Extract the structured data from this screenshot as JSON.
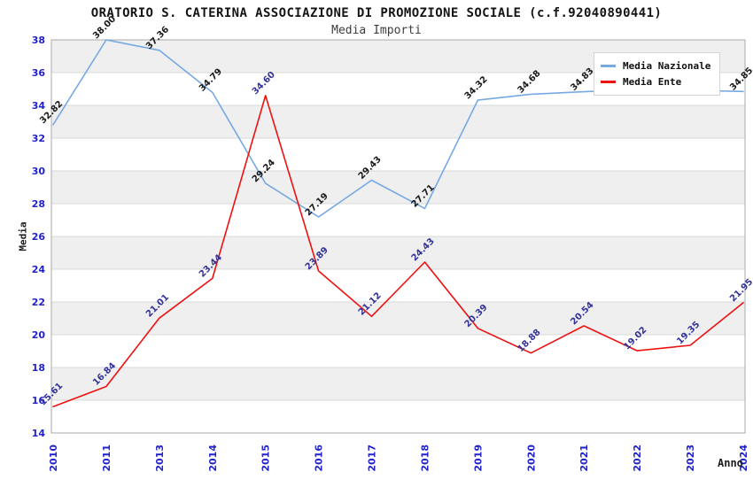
{
  "header": {
    "title": "ORATORIO S. CATERINA ASSOCIAZIONE DI PROMOZIONE SOCIALE (c.f.92040890441)",
    "subtitle": "Media Importi"
  },
  "chart_data": {
    "type": "line",
    "title": "ORATORIO S. CATERINA ASSOCIAZIONE DI PROMOZIONE SOCIALE (c.f.92040890441)",
    "subtitle": "Media Importi",
    "xlabel": "Anno",
    "ylabel": "Media",
    "ylim": [
      14,
      38
    ],
    "ytick_step": 2,
    "yticks": [
      14,
      16,
      18,
      20,
      22,
      24,
      26,
      28,
      30,
      32,
      34,
      36,
      38
    ],
    "grid": "horizontal gridlines every 2 units with alternating shaded bands",
    "legend_position": "top-right",
    "categories": [
      "2010",
      "2011",
      "2013",
      "2014",
      "2015",
      "2016",
      "2017",
      "2018",
      "2019",
      "2020",
      "2021",
      "2022",
      "2023",
      "2024"
    ],
    "series": [
      {
        "name": "Media Nazionale",
        "color": "#76a9e2",
        "label_color": "#1a1a1a",
        "values": [
          32.82,
          38.0,
          37.36,
          34.79,
          29.24,
          27.19,
          29.43,
          27.71,
          34.32,
          34.68,
          34.83,
          34.97,
          34.92,
          34.85
        ],
        "labels": [
          "32.82",
          "38.00",
          "37.36",
          "34.79",
          "29.24",
          "27.19",
          "29.43",
          "27.71",
          "34.32",
          "34.68",
          "34.83",
          "",
          "",
          "34.85"
        ]
      },
      {
        "name": "Media Ente",
        "color": "#ee1111",
        "label_color": "#333399",
        "values": [
          15.61,
          16.84,
          21.01,
          23.44,
          34.6,
          23.89,
          21.12,
          24.43,
          20.39,
          18.88,
          20.54,
          19.02,
          19.35,
          21.95
        ],
        "labels": [
          "15.61",
          "16.84",
          "21.01",
          "23.44",
          "34.60",
          "23.89",
          "21.12",
          "24.43",
          "20.39",
          "18.88",
          "20.54",
          "19.02",
          "19.35",
          "21.95"
        ]
      }
    ],
    "colors": {
      "axis_tick_labels": "#2222cc",
      "band_fill": "#efefef",
      "gridline": "#d8d8d8",
      "plot_border": "#a8a8a8",
      "background": "#ffffff"
    }
  }
}
